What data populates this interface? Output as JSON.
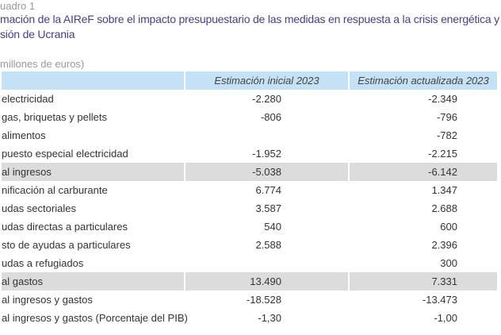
{
  "caption": "uadro 1",
  "title_line1": "mación de la AIReF sobre el impacto presupuestario de las medidas en respuesta a la crisis energética y",
  "title_line2": "sión de Ucrania",
  "subtitle": "millones de euros)",
  "colors": {
    "title": "#4a3f7c",
    "header_bg": "#c5e1f5",
    "total_bg": "#dcdcdc"
  },
  "columns": [
    "",
    "Estimación inicial 2023",
    "Estimación actualizada 2023"
  ],
  "rows": [
    {
      "label": " electricidad",
      "initial": "-2.280",
      "updated": "-2.349",
      "total": false
    },
    {
      "label": " gas, briquetas y pellets",
      "initial": "-806",
      "updated": "-796",
      "total": false
    },
    {
      "label": " alimentos",
      "initial": "",
      "updated": "-782",
      "total": false
    },
    {
      "label": "puesto especial electricidad",
      "initial": "-1.952",
      "updated": "-2.215",
      "total": false
    },
    {
      "label": "al ingresos",
      "initial": "-5.038",
      "updated": "-6.142",
      "total": true
    },
    {
      "label": "nificación al carburante",
      "initial": "6.774",
      "updated": "1.347",
      "total": false
    },
    {
      "label": "udas sectoriales",
      "initial": "3.587",
      "updated": "2.688",
      "total": false
    },
    {
      "label": "udas directas a particulares",
      "initial": "540",
      "updated": "600",
      "total": false
    },
    {
      "label": "sto de ayudas a particulares",
      "initial": "2.588",
      "updated": "2.396",
      "total": false
    },
    {
      "label": "udas a refugiados",
      "initial": "",
      "updated": "300",
      "total": false
    },
    {
      "label": "al gastos",
      "initial": "13.490",
      "updated": "7.331",
      "total": true
    },
    {
      "label": "al ingresos y gastos",
      "initial": "-18.528",
      "updated": "-13.473",
      "total": false
    },
    {
      "label": "al ingresos y gastos (Porcentaje del PIB)",
      "initial": "-1,30",
      "updated": "-1,00",
      "total": false
    }
  ]
}
